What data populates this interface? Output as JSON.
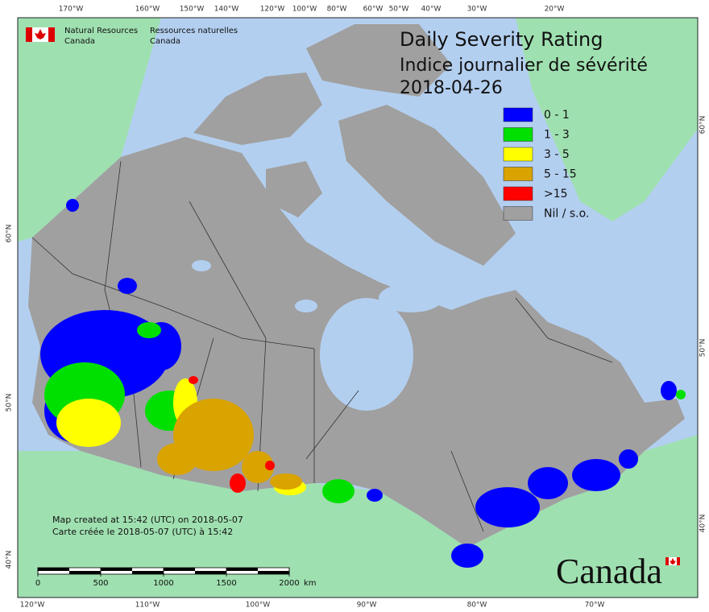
{
  "agency": {
    "en_line1": "Natural Resources",
    "en_line2": "Canada",
    "fr_line1": "Ressources naturelles",
    "fr_line2": "Canada"
  },
  "title": {
    "en": "Daily Severity Rating",
    "fr": "Indice journalier de sévérité",
    "date": "2018-04-26"
  },
  "legend": [
    {
      "label": "0 - 1",
      "color": "#0000ff"
    },
    {
      "label": "1 - 3",
      "color": "#00e000"
    },
    {
      "label": "3 - 5",
      "color": "#ffff00"
    },
    {
      "label": "5 - 15",
      "color": "#d9a300"
    },
    {
      "label": ">15",
      "color": "#ff0000"
    },
    {
      "label": "Nil / s.o.",
      "color": "#a0a0a0"
    }
  ],
  "top_axis": [
    "170°W",
    "160°W",
    "150°W",
    "140°W",
    "120°W",
    "100°W",
    "80°W",
    "60°W",
    "50°W",
    "40°W",
    "30°W",
    "20°W"
  ],
  "bottom_axis": [
    "120°W",
    "110°W",
    "100°W",
    "90°W",
    "80°W",
    "70°W"
  ],
  "left_axis": [
    "60°N",
    "50°N",
    "40°N"
  ],
  "right_axis": [
    "60°N",
    "50°N",
    "40°N"
  ],
  "credit": {
    "en": "Map created at 15:42 (UTC) on 2018-05-07",
    "fr": "Carte créée le 2018-05-07 (UTC) à 15:42"
  },
  "scale_bar": {
    "ticks": [
      0,
      500,
      1000,
      1500,
      2000
    ],
    "unit": "km"
  },
  "wordmark": "Canada"
}
